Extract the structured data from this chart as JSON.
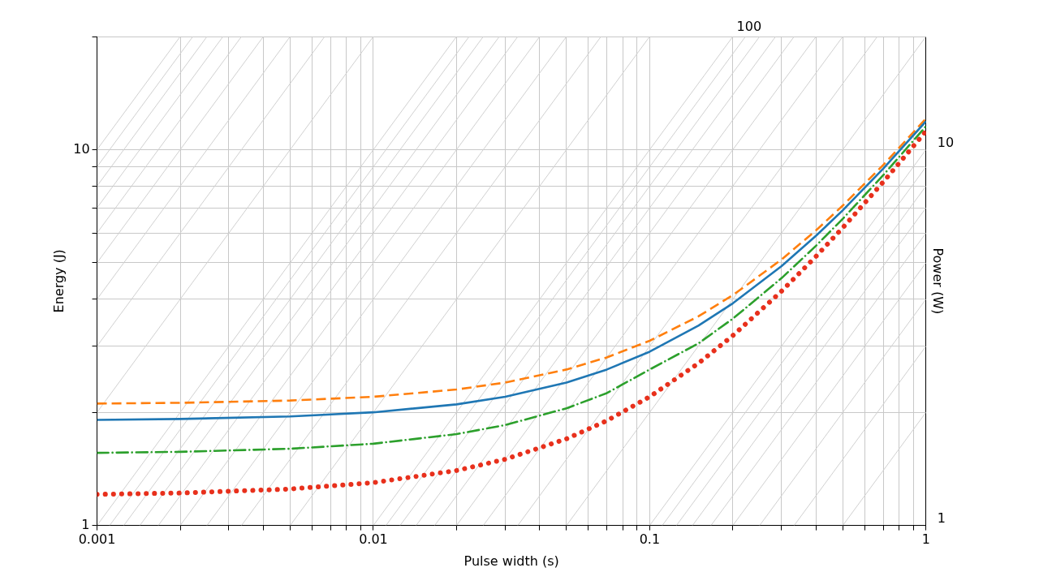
{
  "chart_data": {
    "type": "line",
    "xlabel": "Pulse width (s)",
    "ylabel": "Energy (J)",
    "y2label": "Power (W)",
    "log": "xy",
    "grid": true,
    "legend": false,
    "marker": "none",
    "xlim": [
      0.001,
      1
    ],
    "ylim": [
      1,
      20
    ],
    "xticks": [
      0.001,
      {
        "value": 0.002,
        "label": null
      },
      {
        "value": 0.003,
        "label": null
      },
      {
        "value": 0.004,
        "label": null
      },
      {
        "value": 0.005,
        "label": null
      },
      {
        "value": 0.006,
        "label": null
      },
      {
        "value": 0.007,
        "label": null
      },
      {
        "value": 0.008,
        "label": null
      },
      {
        "value": 0.009,
        "label": null
      },
      0.01,
      {
        "value": 0.02,
        "label": null
      },
      {
        "value": 0.03,
        "label": null
      },
      {
        "value": 0.04,
        "label": null
      },
      {
        "value": 0.05,
        "label": null
      },
      {
        "value": 0.06,
        "label": null
      },
      {
        "value": 0.07,
        "label": null
      },
      {
        "value": 0.08,
        "label": null
      },
      {
        "value": 0.09,
        "label": null
      },
      0.1,
      {
        "value": 0.2,
        "label": null
      },
      {
        "value": 0.3,
        "label": null
      },
      {
        "value": 0.4,
        "label": null
      },
      {
        "value": 0.5,
        "label": null
      },
      {
        "value": 0.6,
        "label": null
      },
      {
        "value": 0.7,
        "label": null
      },
      {
        "value": 0.8,
        "label": null
      },
      {
        "value": 0.9,
        "label": null
      },
      1
    ],
    "yticks": [
      1,
      {
        "value": 2,
        "label": null
      },
      {
        "value": 3,
        "label": null
      },
      {
        "value": 4,
        "label": null
      },
      {
        "value": 5,
        "label": null
      },
      {
        "value": 6,
        "label": null
      },
      {
        "value": 7,
        "label": null
      },
      {
        "value": 8,
        "label": null
      },
      {
        "value": 9,
        "label": null
      },
      10,
      {
        "value": 20,
        "label": null
      }
    ],
    "annotations": [
      {
        "text": "100",
        "x": 0.2,
        "y": 20
      },
      {
        "text": "10",
        "x": 1,
        "y": 10
      },
      "1"
    ],
    "series": [
      {
        "color": "#d0d0d0",
        "x": [
          0.5,
          1
        ],
        "values": [
          1,
          2
        ]
      },
      {
        "color": "#d0d0d0",
        "x": [
          0.3333,
          1
        ],
        "values": [
          1,
          3
        ]
      },
      {
        "color": "#d0d0d0",
        "x": [
          0.25,
          1
        ],
        "values": [
          1,
          4
        ]
      },
      {
        "color": "#d0d0d0",
        "x": [
          0.2,
          1
        ],
        "values": [
          1,
          5
        ]
      },
      {
        "color": "#d0d0d0",
        "x": [
          0.1667,
          1
        ],
        "values": [
          1,
          6
        ]
      },
      {
        "color": "#d0d0d0",
        "x": [
          0.1429,
          1
        ],
        "values": [
          1,
          7
        ]
      },
      {
        "color": "#d0d0d0",
        "x": [
          0.125,
          1
        ],
        "values": [
          1,
          8
        ]
      },
      {
        "color": "#d0d0d0",
        "x": [
          0.1111,
          1
        ],
        "values": [
          1,
          9
        ]
      },
      {
        "color": "#d0d0d0",
        "x": [
          0.1,
          1
        ],
        "values": [
          1,
          10
        ]
      },
      {
        "color": "#d0d0d0",
        "x": [
          0.05,
          1
        ],
        "values": [
          1,
          20
        ]
      },
      {
        "color": "#d0d0d0",
        "x": [
          0.03333,
          0.6667
        ],
        "values": [
          1,
          20
        ]
      },
      {
        "color": "#d0d0d0",
        "x": [
          0.025,
          0.5
        ],
        "values": [
          1,
          20
        ]
      },
      {
        "color": "#d0d0d0",
        "x": [
          0.02,
          0.4
        ],
        "values": [
          1,
          20
        ]
      },
      {
        "color": "#d0d0d0",
        "x": [
          0.01667,
          0.3333
        ],
        "values": [
          1,
          20
        ]
      },
      {
        "color": "#d0d0d0",
        "x": [
          0.01429,
          0.2857
        ],
        "values": [
          1,
          20
        ]
      },
      {
        "color": "#d0d0d0",
        "x": [
          0.0125,
          0.25
        ],
        "values": [
          1,
          20
        ]
      },
      {
        "color": "#d0d0d0",
        "x": [
          0.01111,
          0.2222
        ],
        "values": [
          1,
          20
        ]
      },
      {
        "color": "#d0d0d0",
        "x": [
          0.01,
          0.2
        ],
        "values": [
          1,
          20
        ]
      },
      {
        "color": "#d0d0d0",
        "x": [
          0.005,
          0.1
        ],
        "values": [
          1,
          20
        ]
      },
      {
        "color": "#d0d0d0",
        "x": [
          0.003333,
          0.06667
        ],
        "values": [
          1,
          20
        ]
      },
      {
        "color": "#d0d0d0",
        "x": [
          0.0025,
          0.05
        ],
        "values": [
          1,
          20
        ]
      },
      {
        "color": "#d0d0d0",
        "x": [
          0.002,
          0.04
        ],
        "values": [
          1,
          20
        ]
      },
      {
        "color": "#d0d0d0",
        "x": [
          0.001667,
          0.03333
        ],
        "values": [
          1,
          20
        ]
      },
      {
        "color": "#d0d0d0",
        "x": [
          0.001429,
          0.02857
        ],
        "values": [
          1,
          20
        ]
      },
      {
        "color": "#d0d0d0",
        "x": [
          0.00125,
          0.025
        ],
        "values": [
          1,
          20
        ]
      },
      {
        "color": "#d0d0d0",
        "x": [
          0.001111,
          0.02222
        ],
        "values": [
          1,
          20
        ]
      },
      {
        "color": "#d0d0d0",
        "x": [
          0.001,
          0.02
        ],
        "values": [
          1,
          20
        ]
      },
      {
        "color": "#d0d0d0",
        "x": [
          0.001,
          0.01
        ],
        "values": [
          2,
          20
        ]
      },
      {
        "color": "#d0d0d0",
        "x": [
          0.001,
          0.006667
        ],
        "values": [
          3,
          20
        ]
      },
      {
        "color": "#d0d0d0",
        "x": [
          0.001,
          0.005
        ],
        "values": [
          4,
          20
        ]
      },
      {
        "color": "#d0d0d0",
        "x": [
          0.001,
          0.004
        ],
        "values": [
          5,
          20
        ]
      },
      {
        "color": "#d0d0d0",
        "x": [
          0.001,
          0.003333
        ],
        "values": [
          6,
          20
        ]
      },
      {
        "color": "#d0d0d0",
        "x": [
          0.001,
          0.002857
        ],
        "values": [
          7,
          20
        ]
      },
      {
        "color": "#d0d0d0",
        "x": [
          0.001,
          0.0025
        ],
        "values": [
          8,
          20
        ]
      },
      {
        "color": "#d0d0d0",
        "x": [
          0.001,
          0.002222
        ],
        "values": [
          9,
          20
        ]
      },
      {
        "color": "#d0d0d0",
        "x": [
          0.001,
          0.002
        ],
        "values": [
          10,
          20
        ]
      },
      {
        "color": "#1f77b4",
        "line_style": "solid",
        "x": [
          0.001,
          0.002,
          0.005,
          0.01,
          0.02,
          0.03,
          0.05,
          0.07,
          0.1,
          0.15,
          0.2,
          0.3,
          0.4,
          0.5,
          0.7,
          1
        ],
        "values": [
          1.91,
          1.92,
          1.95,
          2.0,
          2.1,
          2.2,
          2.4,
          2.6,
          2.9,
          3.4,
          3.9,
          4.9,
          5.9,
          6.9,
          8.9,
          11.9
        ]
      },
      {
        "color": "#ff7f0e",
        "line_style": "dashed",
        "x": [
          0.001,
          0.002,
          0.005,
          0.01,
          0.02,
          0.03,
          0.05,
          0.07,
          0.1,
          0.15,
          0.2,
          0.3,
          0.4,
          0.5,
          0.7,
          1
        ],
        "values": [
          2.11,
          2.12,
          2.15,
          2.2,
          2.3,
          2.4,
          2.6,
          2.8,
          3.1,
          3.6,
          4.1,
          5.1,
          6.1,
          7.1,
          9.1,
          12.1
        ]
      },
      {
        "color": "#2ca02c",
        "line_style": "dashdot",
        "x": [
          0.001,
          0.002,
          0.005,
          0.01,
          0.02,
          0.03,
          0.05,
          0.07,
          0.1,
          0.15,
          0.2,
          0.3,
          0.4,
          0.5,
          0.7,
          1
        ],
        "values": [
          1.56,
          1.57,
          1.6,
          1.65,
          1.75,
          1.85,
          2.05,
          2.25,
          2.6,
          3.05,
          3.55,
          4.55,
          5.55,
          6.55,
          8.55,
          11.55
        ]
      },
      {
        "color": "#e8301c",
        "line_style": "dotted",
        "x": [
          0.001,
          0.002,
          0.005,
          0.01,
          0.02,
          0.03,
          0.05,
          0.07,
          0.1,
          0.15,
          0.2,
          0.3,
          0.4,
          0.5,
          0.7,
          1
        ],
        "values": [
          1.21,
          1.22,
          1.25,
          1.3,
          1.4,
          1.5,
          1.7,
          1.9,
          2.2,
          2.7,
          3.2,
          4.2,
          5.2,
          6.2,
          8.2,
          11.2
        ]
      }
    ]
  }
}
